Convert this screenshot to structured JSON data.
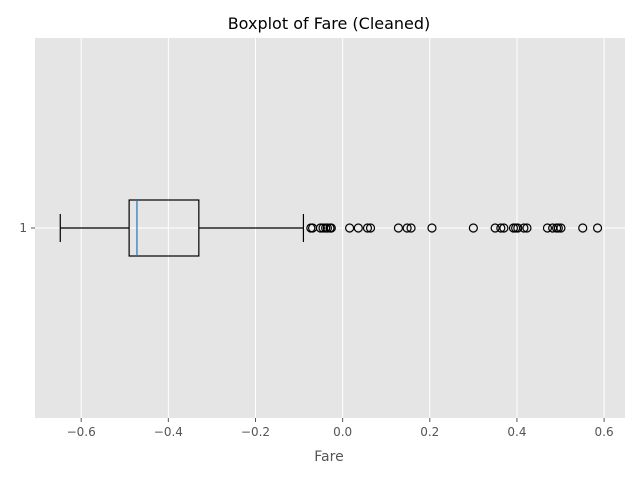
{
  "chart_data": {
    "type": "boxplot",
    "orientation": "horizontal",
    "title": "Boxplot of Fare (Cleaned)",
    "xlabel": "Fare",
    "ylabel": "",
    "xlim": [
      -0.706,
      0.648
    ],
    "xticks": [
      -0.6,
      -0.4,
      -0.2,
      0.0,
      0.2,
      0.4,
      0.6
    ],
    "xtick_labels": [
      "−0.6",
      "−0.4",
      "−0.2",
      "0.0",
      "0.2",
      "0.4",
      "0.6"
    ],
    "categories": [
      "1"
    ],
    "grid": true,
    "style": "ggplot",
    "boxes": [
      {
        "category": "1",
        "whisker_low": -0.648,
        "q1": -0.49,
        "median": -0.472,
        "q3": -0.33,
        "whisker_high": -0.09,
        "outliers": [
          -0.073,
          -0.069,
          -0.051,
          -0.045,
          -0.039,
          -0.035,
          -0.029,
          -0.026,
          0.016,
          0.036,
          0.057,
          0.064,
          0.128,
          0.148,
          0.157,
          0.205,
          0.3,
          0.35,
          0.363,
          0.37,
          0.392,
          0.397,
          0.402,
          0.416,
          0.423,
          0.47,
          0.482,
          0.491,
          0.495,
          0.501,
          0.551,
          0.585
        ]
      }
    ],
    "colors": {
      "background": "#e5e5e5",
      "grid": "#ffffff",
      "box": "#000000",
      "median": "#1f77b4",
      "tick_text": "#555555"
    }
  }
}
